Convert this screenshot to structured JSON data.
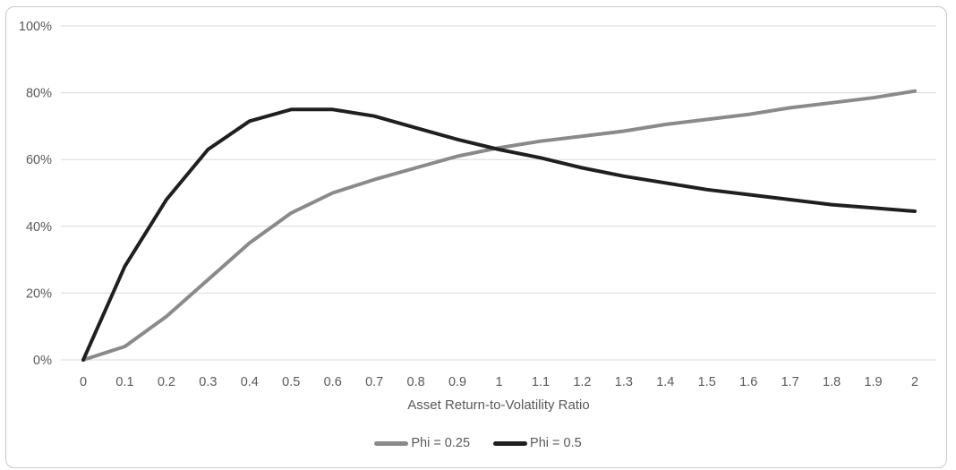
{
  "chart_data": {
    "type": "line",
    "title": "",
    "xlabel": "Asset Return-to-Volatility Ratio",
    "ylabel": "",
    "x_tick_labels": [
      "0",
      "0.1",
      "0.2",
      "0.3",
      "0.4",
      "0.5",
      "0.6",
      "0.7",
      "0.8",
      "0.9",
      "1",
      "1.1",
      "1.2",
      "1.3",
      "1.4",
      "1.5",
      "1.6",
      "1.7",
      "1.8",
      "1.9",
      "2"
    ],
    "x": [
      0,
      0.1,
      0.2,
      0.3,
      0.4,
      0.5,
      0.6,
      0.7,
      0.8,
      0.9,
      1,
      1.1,
      1.2,
      1.3,
      1.4,
      1.5,
      1.6,
      1.7,
      1.8,
      1.9,
      2
    ],
    "y_ticks": [
      0,
      20,
      40,
      60,
      80,
      100
    ],
    "y_tick_labels": [
      "0%",
      "20%",
      "40%",
      "60%",
      "80%",
      "100%"
    ],
    "ylim": [
      0,
      100
    ],
    "grid": "horizontal",
    "legend_position": "bottom-center",
    "series": [
      {
        "name": "Phi = 0.25",
        "color": "#8a8a8a",
        "values": [
          0,
          4,
          13,
          24,
          35,
          44,
          50,
          54,
          57.5,
          61,
          63.5,
          65.5,
          67,
          68.5,
          70.5,
          72,
          73.5,
          75.5,
          77,
          78.5,
          80.5
        ]
      },
      {
        "name": "Phi = 0.5",
        "color": "#1f1f1f",
        "values": [
          0,
          28,
          48,
          63,
          71.5,
          75,
          75,
          73,
          69.5,
          66,
          63,
          60.5,
          57.5,
          55,
          53,
          51,
          49.5,
          48,
          46.5,
          45.5,
          44.5
        ]
      }
    ]
  },
  "colors": {
    "gridline": "#d9d9d9",
    "tick_text": "#595959",
    "axis_title_text": "#595959",
    "legend_text": "#595959",
    "chart_border": "#c9c9c9",
    "background": "#ffffff"
  }
}
